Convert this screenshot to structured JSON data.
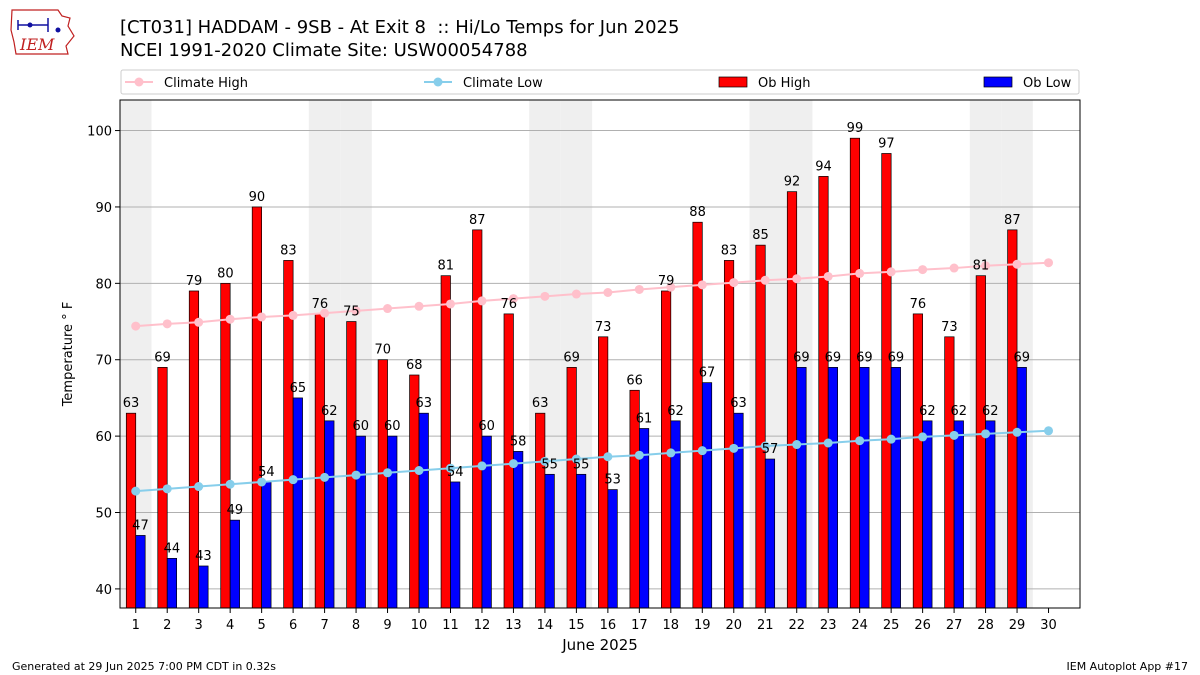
{
  "header": {
    "title_line1": "[CT031] HADDAM - 9SB - At Exit 8  :: Hi/Lo Temps for Jun 2025",
    "title_line2": "NCEI 1991-2020 Climate Site: USW00054788",
    "logo_text": "IEM"
  },
  "footer": {
    "left": "Generated at 29 Jun 2025 7:00 PM CDT in 0.32s",
    "right": "IEM Autoplot App #17"
  },
  "colors": {
    "ob_high": "#ff0000",
    "ob_low": "#0000ff",
    "climate_high": "#ffc0cb",
    "climate_low": "#87ceeb",
    "weekend_shade": "#efefef",
    "grid": "#b0b0b0"
  },
  "chart_data": {
    "type": "bar",
    "xlabel": "June 2025",
    "ylabel": "Temperature ° F",
    "ylim": [
      37.5,
      104
    ],
    "yticks": [
      40,
      50,
      60,
      70,
      80,
      90,
      100
    ],
    "grid": true,
    "legend_placement": "top",
    "categories": [
      "1",
      "2",
      "3",
      "4",
      "5",
      "6",
      "7",
      "8",
      "9",
      "10",
      "11",
      "12",
      "13",
      "14",
      "15",
      "16",
      "17",
      "18",
      "19",
      "20",
      "21",
      "22",
      "23",
      "24",
      "25",
      "26",
      "27",
      "28",
      "29",
      "30"
    ],
    "shaded_days": [
      1,
      7,
      8,
      14,
      15,
      21,
      22,
      28,
      29
    ],
    "series": [
      {
        "name": "Climate High",
        "kind": "line",
        "values": [
          74.4,
          74.7,
          74.9,
          75.3,
          75.6,
          75.8,
          76.1,
          76.4,
          76.7,
          77.0,
          77.3,
          77.7,
          78.0,
          78.3,
          78.6,
          78.8,
          79.2,
          79.5,
          79.8,
          80.1,
          80.4,
          80.6,
          80.9,
          81.3,
          81.5,
          81.8,
          82.0,
          82.3,
          82.5,
          82.7
        ]
      },
      {
        "name": "Climate Low",
        "kind": "line",
        "values": [
          52.8,
          53.1,
          53.4,
          53.7,
          54.0,
          54.3,
          54.6,
          54.9,
          55.2,
          55.5,
          55.8,
          56.1,
          56.4,
          56.7,
          57.0,
          57.3,
          57.5,
          57.8,
          58.1,
          58.4,
          58.7,
          58.9,
          59.1,
          59.4,
          59.6,
          59.9,
          60.1,
          60.3,
          60.5,
          60.7
        ]
      },
      {
        "name": "Ob High",
        "kind": "bar",
        "values": [
          63,
          69,
          79,
          80,
          90,
          83,
          76,
          75,
          70,
          68,
          81,
          87,
          76,
          63,
          69,
          73,
          66,
          79,
          88,
          83,
          85,
          92,
          94,
          99,
          97,
          76,
          73,
          81,
          87,
          null
        ]
      },
      {
        "name": "Ob Low",
        "kind": "bar",
        "values": [
          47,
          44,
          43,
          49,
          54,
          65,
          62,
          60,
          60,
          63,
          54,
          60,
          58,
          55,
          55,
          53,
          61,
          62,
          67,
          63,
          57,
          69,
          69,
          69,
          69,
          62,
          62,
          62,
          69,
          null
        ]
      }
    ]
  }
}
